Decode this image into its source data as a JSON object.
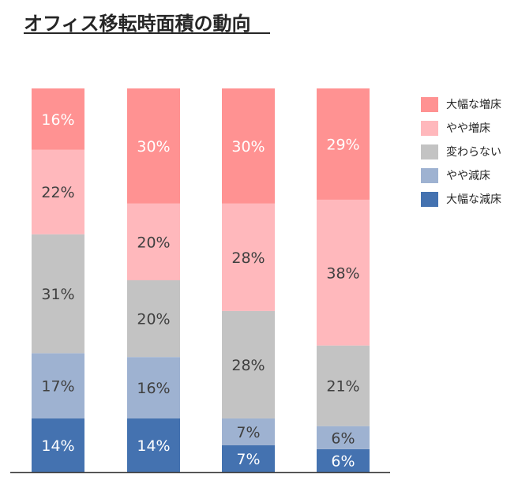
{
  "title": "オフィス移転時面積の動向",
  "chart_data": {
    "type": "bar",
    "stacked": true,
    "categories": [
      "",
      "",
      "",
      ""
    ],
    "series": [
      {
        "name": "大幅な減床",
        "color": "#4472b0",
        "values": [
          14,
          14,
          7,
          6
        ]
      },
      {
        "name": "やや減床",
        "color": "#9eb2d1",
        "values": [
          17,
          16,
          7,
          6
        ]
      },
      {
        "name": "変わらない",
        "color": "#c3c3c3",
        "values": [
          31,
          20,
          28,
          21
        ]
      },
      {
        "name": "やや増床",
        "color": "#ffb8bc",
        "values": [
          22,
          20,
          28,
          38
        ]
      },
      {
        "name": "大幅な増床",
        "color": "#ff9292",
        "values": [
          16,
          30,
          30,
          29
        ]
      }
    ],
    "data_labels": true,
    "label_suffix": "%",
    "legend_position": "right",
    "legend_order": [
      "大幅な増床",
      "やや増床",
      "変わらない",
      "やや減床",
      "大幅な減床"
    ]
  }
}
